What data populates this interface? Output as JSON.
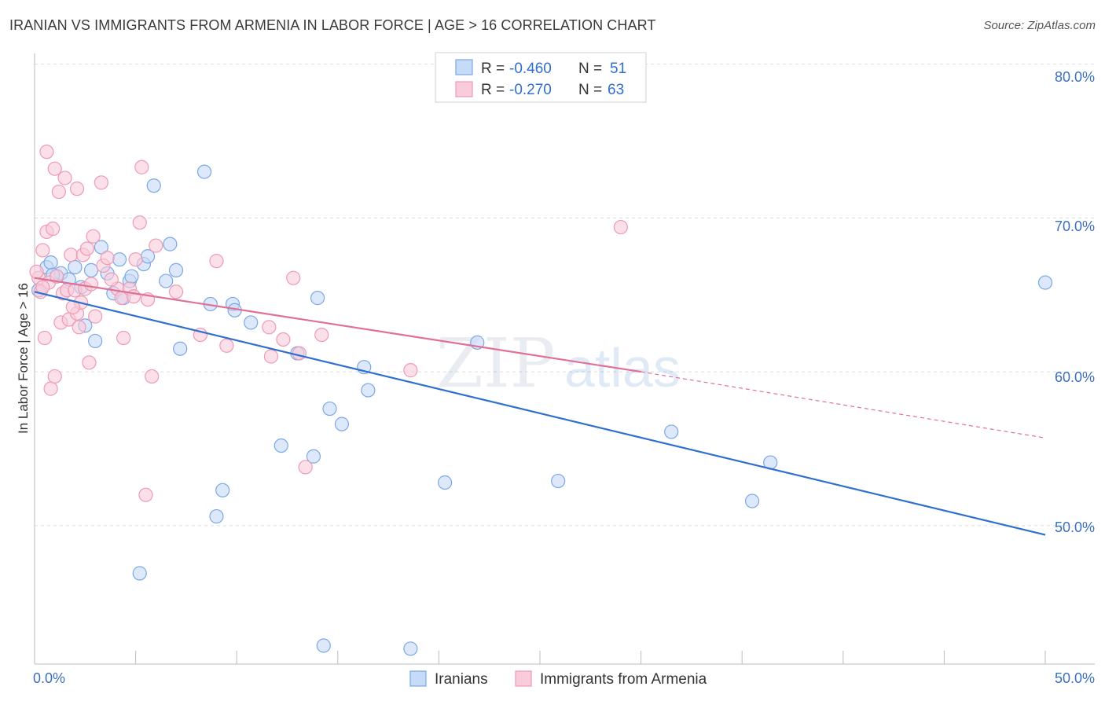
{
  "chart_data": {
    "type": "scatter",
    "title": "IRANIAN VS IMMIGRANTS FROM ARMENIA IN LABOR FORCE | AGE > 16 CORRELATION CHART",
    "source": "Source: ZipAtlas.com",
    "xlabel": "",
    "ylabel": "In Labor Force | Age > 16",
    "xlim": [
      0,
      50
    ],
    "ylim": [
      41,
      81
    ],
    "x_tick_labels": [
      "0.0%",
      "50.0%"
    ],
    "y_ticks": [
      50,
      60,
      70,
      80
    ],
    "y_tick_labels": [
      "50.0%",
      "60.0%",
      "70.0%",
      "80.0%"
    ],
    "grid": true,
    "watermark": "ZIPatlas",
    "legend": {
      "position": "top-center",
      "r_label": "R =",
      "n_label": "N =",
      "rows": [
        {
          "name": "Iranians",
          "r": "-0.460",
          "n": "51"
        },
        {
          "name": "Immigrants from Armenia",
          "r": "-0.270",
          "n": "63"
        }
      ]
    },
    "series": [
      {
        "name": "Iranians",
        "color": "#7aa8e6",
        "fill": "#c6dbf7",
        "line_color": "#2f6fcf",
        "trend": {
          "x0": 0,
          "y0": 65.2,
          "x1": 50,
          "y1": 49.4
        },
        "points": [
          [
            0.2,
            65.3
          ],
          [
            0.6,
            66.8
          ],
          [
            0.8,
            67.1
          ],
          [
            1.1,
            66.2
          ],
          [
            1.3,
            66.4
          ],
          [
            1.7,
            66.0
          ],
          [
            2.0,
            66.8
          ],
          [
            2.3,
            65.5
          ],
          [
            2.5,
            63.0
          ],
          [
            2.8,
            66.6
          ],
          [
            3.0,
            62.0
          ],
          [
            3.3,
            68.1
          ],
          [
            3.6,
            66.4
          ],
          [
            3.9,
            65.1
          ],
          [
            4.2,
            67.3
          ],
          [
            4.4,
            64.8
          ],
          [
            4.7,
            65.9
          ],
          [
            4.8,
            66.2
          ],
          [
            5.2,
            46.9
          ],
          [
            5.4,
            67.0
          ],
          [
            5.6,
            67.5
          ],
          [
            5.9,
            72.1
          ],
          [
            6.5,
            65.9
          ],
          [
            6.7,
            68.3
          ],
          [
            7.0,
            66.6
          ],
          [
            7.2,
            61.5
          ],
          [
            8.4,
            73.0
          ],
          [
            8.7,
            64.4
          ],
          [
            9.0,
            50.6
          ],
          [
            9.3,
            52.3
          ],
          [
            9.8,
            64.4
          ],
          [
            9.9,
            64.0
          ],
          [
            10.7,
            63.2
          ],
          [
            12.2,
            55.2
          ],
          [
            13.0,
            61.2
          ],
          [
            13.8,
            54.5
          ],
          [
            14.0,
            64.8
          ],
          [
            14.3,
            42.2
          ],
          [
            14.6,
            57.6
          ],
          [
            15.2,
            56.6
          ],
          [
            16.3,
            60.3
          ],
          [
            16.5,
            58.8
          ],
          [
            18.6,
            42.0
          ],
          [
            20.3,
            52.8
          ],
          [
            21.9,
            61.9
          ],
          [
            25.9,
            52.9
          ],
          [
            31.5,
            56.1
          ],
          [
            35.5,
            51.6
          ],
          [
            36.4,
            54.1
          ],
          [
            50.0,
            65.8
          ],
          [
            0.9,
            66.3
          ]
        ]
      },
      {
        "name": "Immigrants from Armenia",
        "color": "#ef9ab5",
        "fill": "#f9ccdb",
        "line_color": "#e07095",
        "trend": {
          "x0": 0,
          "y0": 66.1,
          "x1": 30.0,
          "y1": 60.0
        },
        "trend_ext": {
          "x0": 30.0,
          "y0": 60.0,
          "x1": 50,
          "y1": 55.7
        },
        "points": [
          [
            0.2,
            66.1
          ],
          [
            0.3,
            65.2
          ],
          [
            0.4,
            67.9
          ],
          [
            0.5,
            62.2
          ],
          [
            0.6,
            74.3
          ],
          [
            0.6,
            69.1
          ],
          [
            0.8,
            58.9
          ],
          [
            0.9,
            69.3
          ],
          [
            1.0,
            59.7
          ],
          [
            1.0,
            73.2
          ],
          [
            1.2,
            71.7
          ],
          [
            1.3,
            63.2
          ],
          [
            1.4,
            65.1
          ],
          [
            1.5,
            72.6
          ],
          [
            1.6,
            65.3
          ],
          [
            1.7,
            63.4
          ],
          [
            1.8,
            67.6
          ],
          [
            2.0,
            65.3
          ],
          [
            2.1,
            63.8
          ],
          [
            2.1,
            71.9
          ],
          [
            2.3,
            64.5
          ],
          [
            2.4,
            67.6
          ],
          [
            2.5,
            65.4
          ],
          [
            2.6,
            68.0
          ],
          [
            2.7,
            60.6
          ],
          [
            2.8,
            65.7
          ],
          [
            2.9,
            68.8
          ],
          [
            3.0,
            63.6
          ],
          [
            3.3,
            72.3
          ],
          [
            3.4,
            66.9
          ],
          [
            3.6,
            67.4
          ],
          [
            4.1,
            65.4
          ],
          [
            4.3,
            64.8
          ],
          [
            4.4,
            62.2
          ],
          [
            4.7,
            65.4
          ],
          [
            4.9,
            64.9
          ],
          [
            5.0,
            67.3
          ],
          [
            5.2,
            69.7
          ],
          [
            5.3,
            73.3
          ],
          [
            5.5,
            52.0
          ],
          [
            5.6,
            64.7
          ],
          [
            5.8,
            59.7
          ],
          [
            6.0,
            68.2
          ],
          [
            7.0,
            65.2
          ],
          [
            8.2,
            62.4
          ],
          [
            9.0,
            67.2
          ],
          [
            9.5,
            61.7
          ],
          [
            11.6,
            62.9
          ],
          [
            11.7,
            61.0
          ],
          [
            12.3,
            62.1
          ],
          [
            12.8,
            66.1
          ],
          [
            13.1,
            61.2
          ],
          [
            13.4,
            53.8
          ],
          [
            14.2,
            62.4
          ],
          [
            18.6,
            60.1
          ],
          [
            29.0,
            69.4
          ],
          [
            0.1,
            66.5
          ],
          [
            0.7,
            65.8
          ],
          [
            1.1,
            66.2
          ],
          [
            2.2,
            62.9
          ],
          [
            3.8,
            66.0
          ],
          [
            0.4,
            65.5
          ],
          [
            1.9,
            64.2
          ]
        ]
      }
    ]
  }
}
